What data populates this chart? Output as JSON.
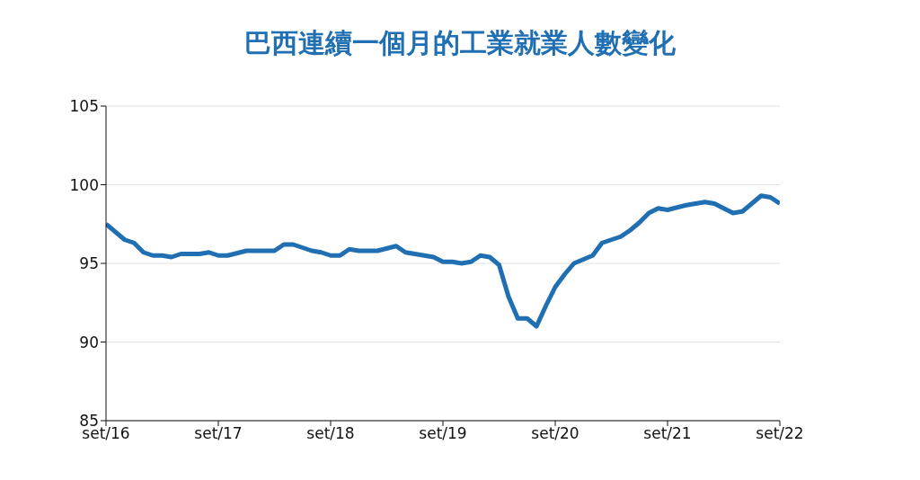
{
  "chart_data": {
    "type": "line",
    "title": "巴西連續一個月的工業就業人數變化",
    "x": [
      "2016-09",
      "2016-11",
      "2016-12",
      "2017-01",
      "2017-02",
      "2017-03",
      "2017-04",
      "2017-05",
      "2017-07",
      "2017-08",
      "2017-09",
      "2017-10",
      "2017-12",
      "2018-03",
      "2018-04",
      "2018-05",
      "2018-07",
      "2018-08",
      "2018-09",
      "2018-10",
      "2018-11",
      "2018-12",
      "2019-02",
      "2019-04",
      "2019-05",
      "2019-07",
      "2019-08",
      "2019-09",
      "2019-10",
      "2019-11",
      "2019-12",
      "2020-01",
      "2020-02",
      "2020-03",
      "2020-04",
      "2020-05",
      "2020-06",
      "2020-07",
      "2020-08",
      "2020-09",
      "2020-10",
      "2020-11",
      "2021-01",
      "2021-02",
      "2021-04",
      "2021-05",
      "2021-06",
      "2021-07",
      "2021-08",
      "2021-09",
      "2021-11",
      "2022-01",
      "2022-02",
      "2022-04",
      "2022-05",
      "2022-07",
      "2022-08",
      "2022-09"
    ],
    "series": [
      {
        "color": "#1f6fb2",
        "values": [
          97.5,
          96.5,
          96.3,
          95.7,
          95.5,
          95.5,
          95.4,
          95.6,
          95.6,
          95.7,
          95.5,
          95.5,
          95.8,
          95.8,
          96.2,
          96.2,
          95.8,
          95.7,
          95.5,
          95.5,
          95.9,
          95.8,
          95.8,
          96.1,
          95.7,
          95.5,
          95.4,
          95.1,
          95.1,
          95.0,
          95.1,
          95.5,
          95.4,
          94.9,
          92.9,
          91.5,
          91.5,
          91.0,
          92.3,
          93.5,
          94.3,
          95.0,
          95.5,
          96.3,
          96.7,
          97.1,
          97.6,
          98.2,
          98.5,
          98.4,
          98.7,
          98.9,
          98.8,
          98.2,
          98.3,
          99.3,
          99.2,
          98.8
        ]
      }
    ],
    "xlim": [
      "2016-09",
      "2022-09"
    ],
    "xticks": [
      {
        "value": "2016-09",
        "label": "set/16"
      },
      {
        "value": "2017-09",
        "label": "set/17"
      },
      {
        "value": "2018-09",
        "label": "set/18"
      },
      {
        "value": "2019-09",
        "label": "set/19"
      },
      {
        "value": "2020-09",
        "label": "set/20"
      },
      {
        "value": "2021-09",
        "label": "set/21"
      },
      {
        "value": "2022-09",
        "label": "set/22"
      }
    ],
    "ylim": [
      85,
      105
    ],
    "yticks": [
      85,
      90,
      95,
      100,
      105
    ],
    "grid": "y",
    "marker": "none",
    "line_style": "solid"
  }
}
